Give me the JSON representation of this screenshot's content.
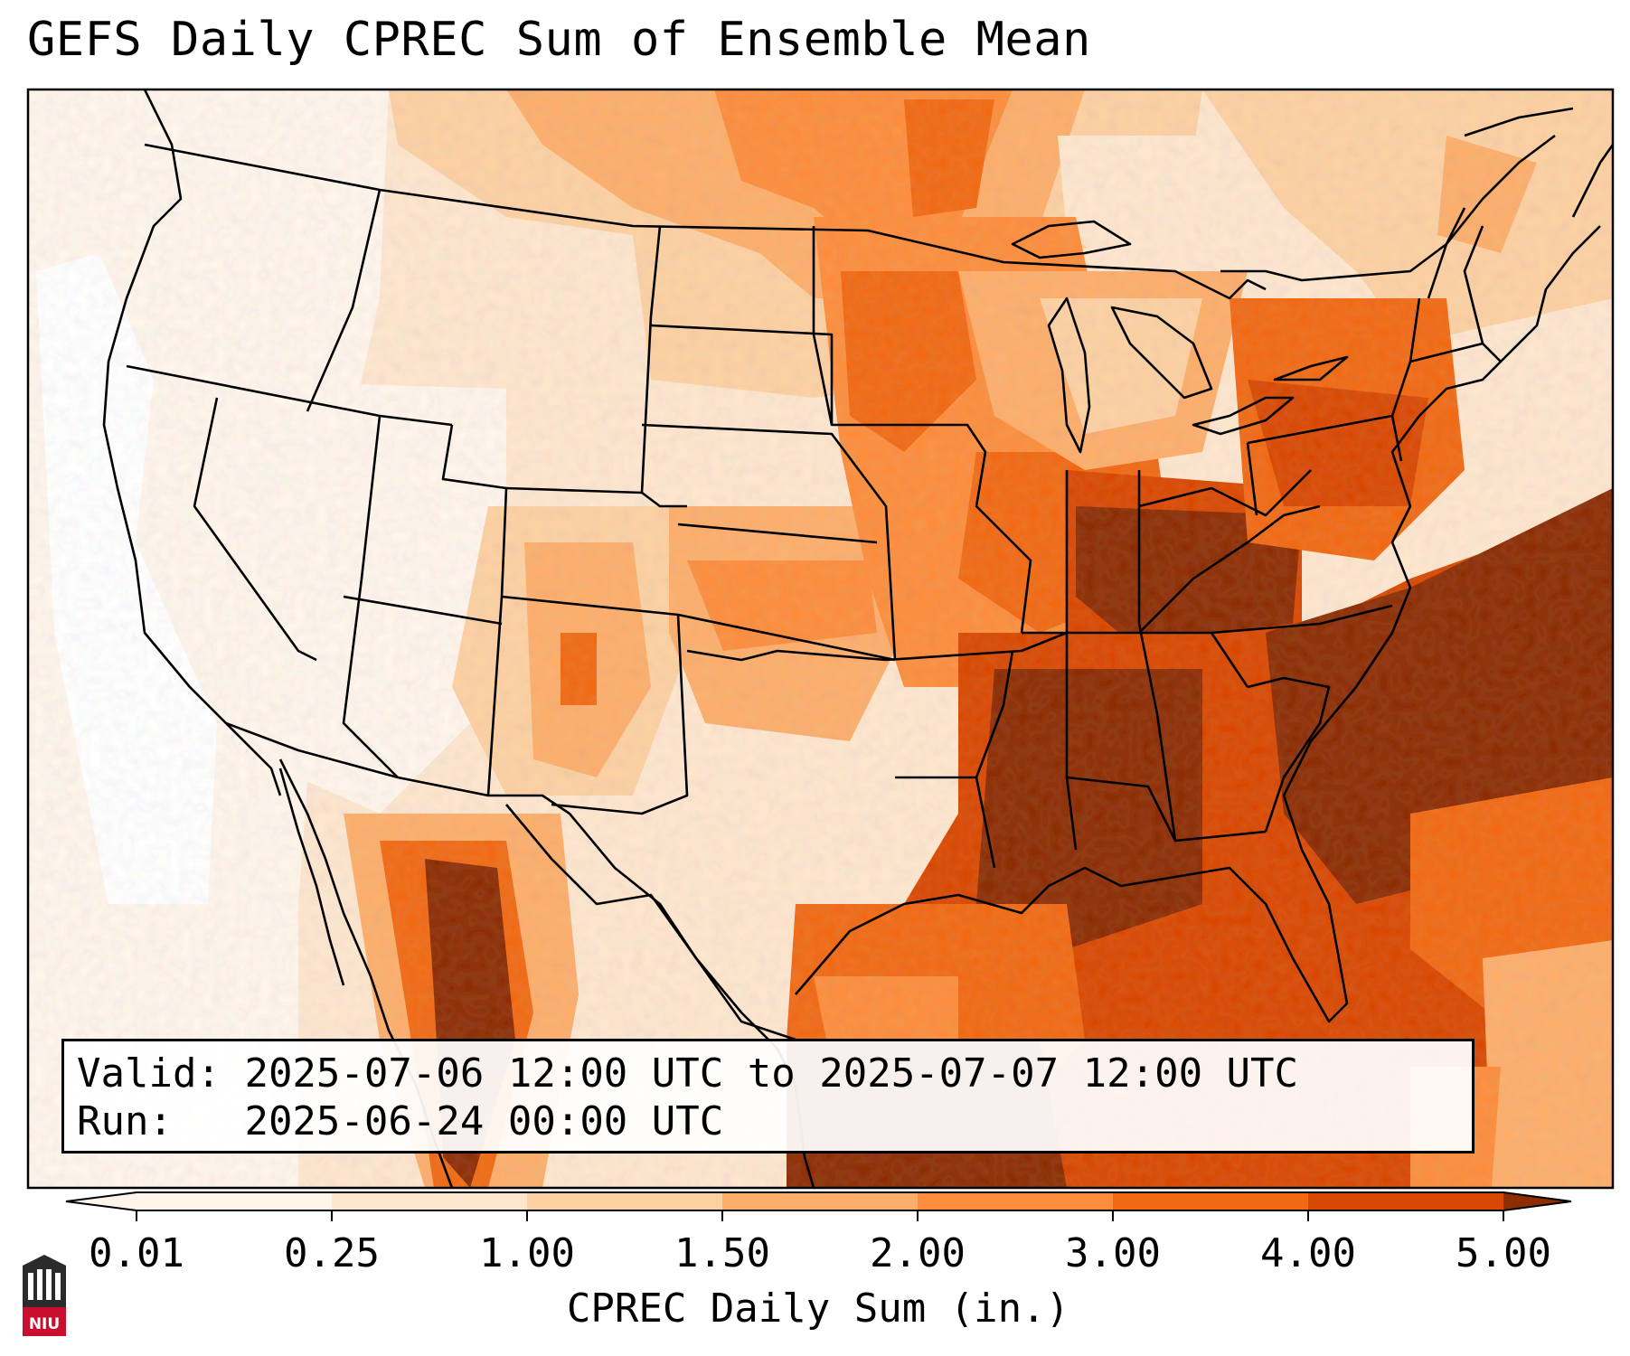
{
  "title": "GEFS Daily CPREC Sum of Ensemble Mean",
  "info": {
    "valid_label": "Valid:",
    "valid_value": "2025-07-06 12:00 UTC to 2025-07-07 12:00 UTC",
    "run_label": "Run:",
    "run_value": "2025-06-24 00:00 UTC"
  },
  "colorbar": {
    "title": "CPREC Daily Sum (in.)",
    "ticks": [
      "0.01",
      "0.25",
      "1.00",
      "1.50",
      "2.00",
      "3.00",
      "4.00",
      "5.00"
    ],
    "colors": [
      "#fff5eb",
      "#fee6ce",
      "#fdd0a2",
      "#fdae6b",
      "#fd8d3c",
      "#f16913",
      "#d94801",
      "#8c2d04"
    ],
    "extend": "both"
  },
  "logo": {
    "text": "NIU",
    "accent": "#c8102e"
  }
}
